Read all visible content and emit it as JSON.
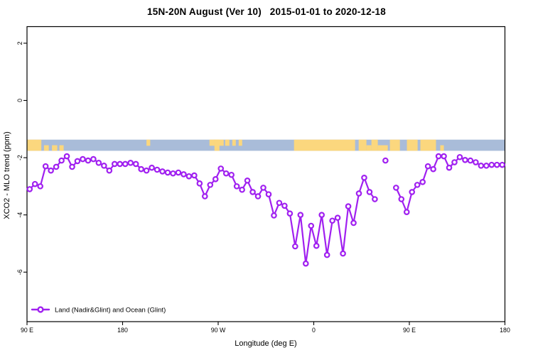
{
  "title": "15N-20N August (Ver 10)   2015-01-01 to 2020-12-18",
  "colors": {
    "series": "#A020F0",
    "marker_fill": "#FFFFFF",
    "ocean": "#A9BCD9",
    "land": "#FBD77E",
    "axis": "#000000",
    "background": "#FFFFFF"
  },
  "chart_data": {
    "type": "line",
    "title": "15N-20N August (Ver 10)   2015-01-01 to 2020-12-18",
    "xlabel": "Longitude (deg E)",
    "ylabel": "XCO2 - MLO trend (ppm)",
    "legend_label": "Land (Nadir&Glint) and Ocean (Glint)",
    "legend_position": "bottom-left",
    "grid": false,
    "x_range": [
      90,
      540
    ],
    "y_range": [
      -7.73,
      2.58
    ],
    "x_ticks": [
      {
        "lon": 90,
        "label": "90 E"
      },
      {
        "lon": 180,
        "label": "180"
      },
      {
        "lon": 270,
        "label": "90 W"
      },
      {
        "lon": 360,
        "label": "0"
      },
      {
        "lon": 450,
        "label": "90 E"
      },
      {
        "lon": 540,
        "label": "180"
      }
    ],
    "y_ticks": [
      2,
      0,
      -2,
      -4,
      -6
    ],
    "land_ocean_strip": {
      "value_range": [
        -1.76,
        -1.37
      ],
      "description": "land(tan)/ocean(blue) strip along longitude",
      "land_patches": [
        {
          "lon": [
            90,
            103.5
          ],
          "part": "full"
        },
        {
          "lon": [
            106,
            110.5
          ],
          "part": "bottom"
        },
        {
          "lon": [
            113.5,
            118.5
          ],
          "part": "bottom"
        },
        {
          "lon": [
            120.5,
            124.5
          ],
          "part": "bottom"
        },
        {
          "lon": [
            202.5,
            206
          ],
          "part": "top"
        },
        {
          "lon": [
            261.8,
            275.2
          ],
          "part": "top"
        },
        {
          "lon": [
            266.5,
            271.2
          ],
          "part": "full"
        },
        {
          "lon": [
            276.6,
            280.6
          ],
          "part": "top"
        },
        {
          "lon": [
            283.3,
            286.6
          ],
          "part": "top"
        },
        {
          "lon": [
            289.3,
            292.6
          ],
          "part": "top"
        },
        {
          "lon": [
            341.4,
            398.9
          ],
          "part": "full"
        },
        {
          "lon": [
            402.3,
            409.6
          ],
          "part": "full"
        },
        {
          "lon": [
            409.6,
            414.3
          ],
          "part": "bottom"
        },
        {
          "lon": [
            414.3,
            420.3
          ],
          "part": "full"
        },
        {
          "lon": [
            420.3,
            429.7
          ],
          "part": "bottom"
        },
        {
          "lon": [
            431.7,
            441.1
          ],
          "part": "full"
        },
        {
          "lon": [
            447.7,
            457.8
          ],
          "part": "full"
        },
        {
          "lon": [
            460.4,
            475.1
          ],
          "part": "full"
        },
        {
          "lon": [
            479.1,
            482.5
          ],
          "part": "bottom"
        }
      ]
    },
    "series": [
      {
        "name": "Land (Nadir&Glint) and Ocean (Glint)",
        "segments": [
          [
            [
              92.5,
              -3.1
            ],
            [
              97.5,
              -2.92
            ],
            [
              102.5,
              -3.0
            ],
            [
              107.5,
              -2.3
            ],
            [
              112.5,
              -2.45
            ],
            [
              117.5,
              -2.32
            ],
            [
              122.5,
              -2.1
            ],
            [
              127.5,
              -1.95
            ],
            [
              132.5,
              -2.32
            ],
            [
              137.5,
              -2.12
            ],
            [
              142.5,
              -2.05
            ],
            [
              147.5,
              -2.1
            ],
            [
              152.5,
              -2.05
            ],
            [
              157.5,
              -2.18
            ],
            [
              162.5,
              -2.28
            ],
            [
              167.5,
              -2.45
            ],
            [
              172.5,
              -2.22
            ],
            [
              177.5,
              -2.22
            ],
            [
              182.5,
              -2.22
            ],
            [
              187.5,
              -2.18
            ],
            [
              192.5,
              -2.22
            ],
            [
              197.5,
              -2.4
            ],
            [
              202.5,
              -2.45
            ],
            [
              207.5,
              -2.35
            ],
            [
              212.5,
              -2.42
            ],
            [
              217.5,
              -2.48
            ],
            [
              222.5,
              -2.52
            ],
            [
              227.5,
              -2.55
            ],
            [
              232.5,
              -2.52
            ],
            [
              237.5,
              -2.58
            ],
            [
              242.5,
              -2.65
            ],
            [
              247.5,
              -2.62
            ],
            [
              252.5,
              -2.9
            ],
            [
              257.5,
              -3.35
            ],
            [
              262.5,
              -2.95
            ],
            [
              267.5,
              -2.75
            ],
            [
              272.5,
              -2.38
            ],
            [
              277.5,
              -2.55
            ],
            [
              282.5,
              -2.6
            ],
            [
              287.5,
              -3.0
            ],
            [
              292.5,
              -3.12
            ],
            [
              297.5,
              -2.8
            ],
            [
              302.5,
              -3.2
            ],
            [
              307.5,
              -3.35
            ],
            [
              312.5,
              -3.05
            ],
            [
              317.5,
              -3.28
            ],
            [
              322.5,
              -4.02
            ],
            [
              327.5,
              -3.58
            ],
            [
              332.5,
              -3.68
            ],
            [
              337.5,
              -3.95
            ],
            [
              342.5,
              -5.1
            ],
            [
              347.5,
              -4.0
            ],
            [
              352.5,
              -5.7
            ],
            [
              357.5,
              -4.38
            ],
            [
              362.5,
              -5.08
            ],
            [
              367.5,
              -4.0
            ],
            [
              372.5,
              -5.4
            ],
            [
              377.5,
              -4.2
            ],
            [
              382.5,
              -4.1
            ],
            [
              387.5,
              -5.35
            ],
            [
              392.5,
              -3.7
            ],
            [
              397.5,
              -4.28
            ],
            [
              402.5,
              -3.25
            ],
            [
              407.5,
              -2.7
            ],
            [
              412.5,
              -3.2
            ],
            [
              417.5,
              -3.45
            ]
          ],
          [
            [
              427.5,
              -2.1
            ]
          ],
          [
            [
              437.5,
              -3.05
            ],
            [
              442.5,
              -3.45
            ],
            [
              447.5,
              -3.9
            ],
            [
              452.5,
              -3.2
            ],
            [
              457.5,
              -2.95
            ],
            [
              462.5,
              -2.85
            ],
            [
              467.5,
              -2.3
            ],
            [
              472.5,
              -2.4
            ],
            [
              477.5,
              -1.95
            ],
            [
              482.5,
              -1.95
            ],
            [
              487.5,
              -2.35
            ],
            [
              492.5,
              -2.16
            ],
            [
              497.5,
              -1.98
            ],
            [
              502.5,
              -2.08
            ],
            [
              507.5,
              -2.1
            ],
            [
              512.5,
              -2.16
            ],
            [
              517.5,
              -2.28
            ],
            [
              522.5,
              -2.28
            ],
            [
              527.5,
              -2.25
            ],
            [
              532.5,
              -2.25
            ],
            [
              537.5,
              -2.25
            ]
          ]
        ]
      }
    ]
  }
}
